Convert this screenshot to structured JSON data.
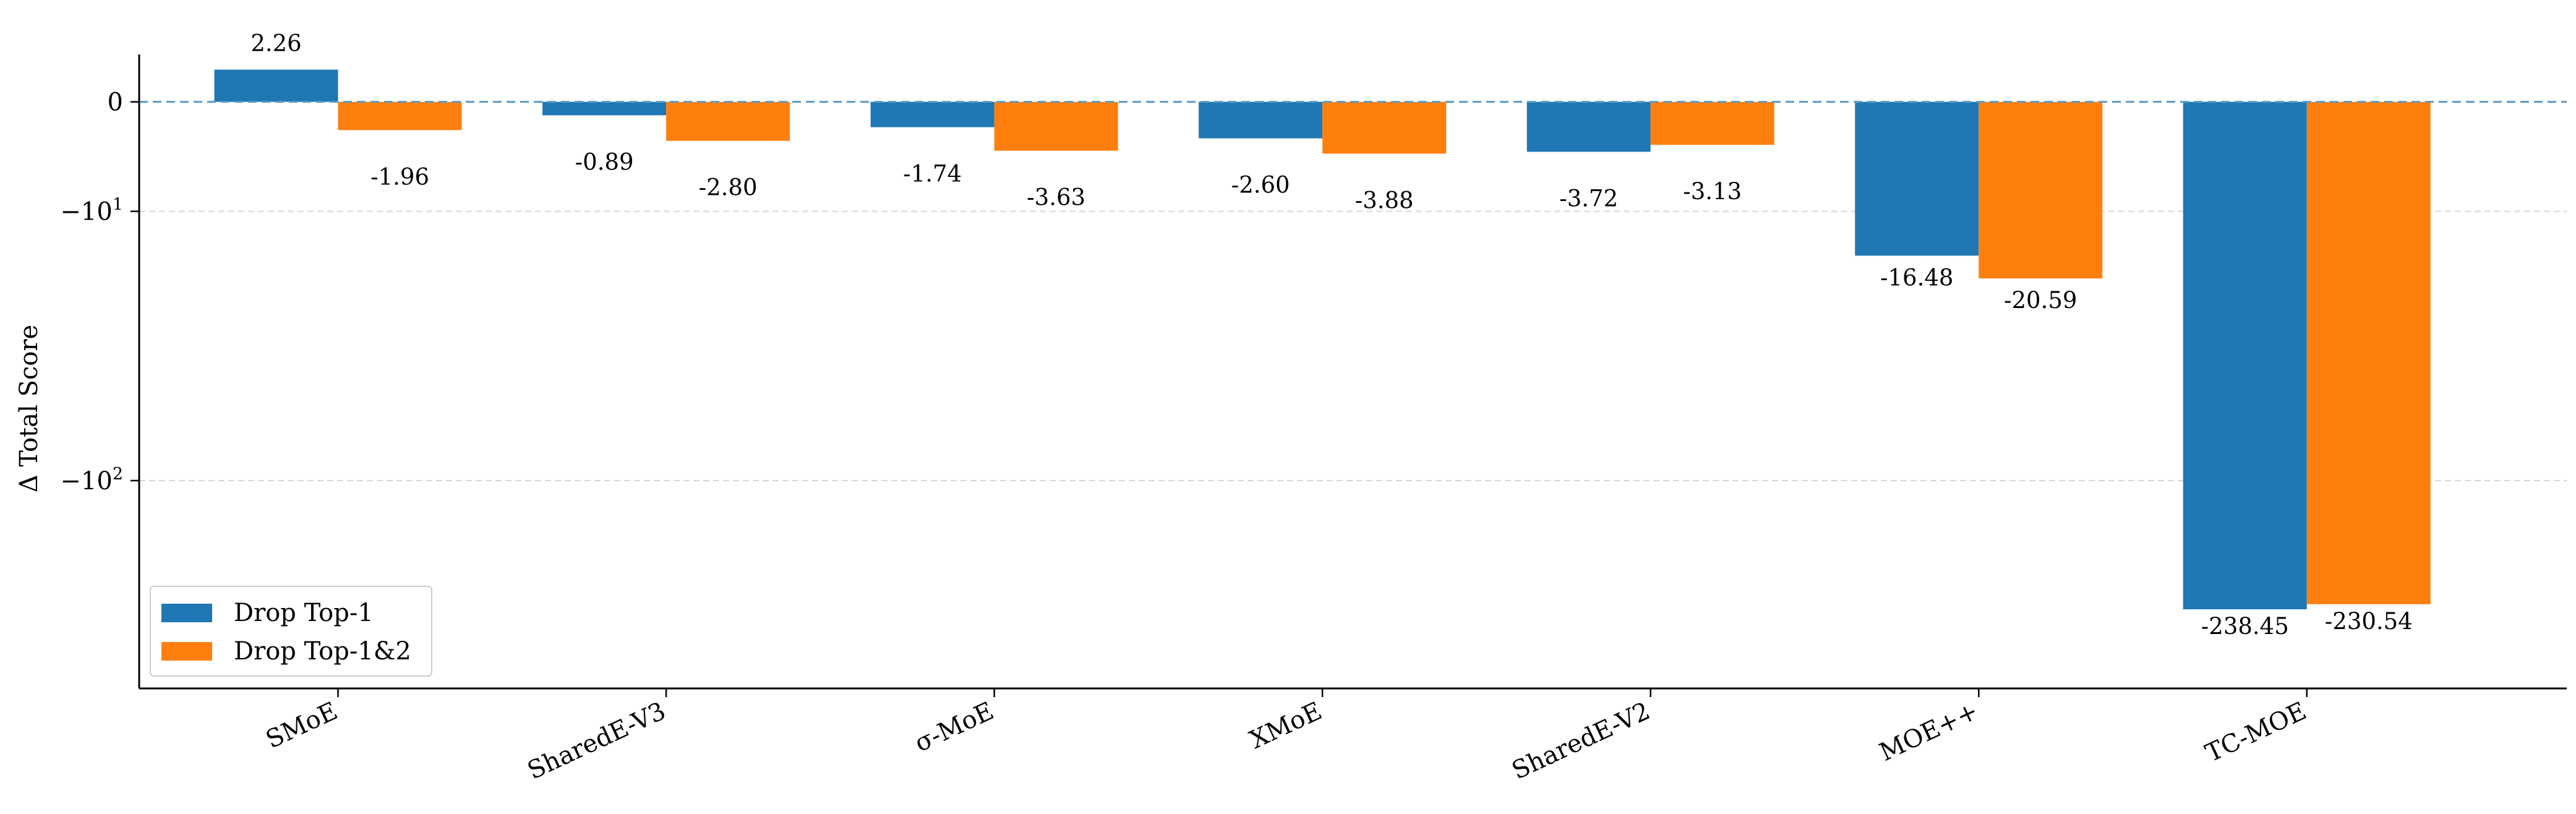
{
  "chart_data": {
    "type": "bar",
    "categories": [
      "SMoE",
      "SharedE-V3",
      "σ-MoE",
      "XMoE",
      "SharedE-V2",
      "MOE++",
      "TC-MOE"
    ],
    "series": [
      {
        "name": "Drop Top-1",
        "color": "#1f77b4",
        "values": [
          2.26,
          -0.89,
          -1.74,
          -2.6,
          -3.72,
          -16.48,
          -238.45
        ],
        "labels": [
          "2.26",
          "-0.89",
          "-1.74",
          "-2.60",
          "-3.72",
          "-16.48",
          "-238.45"
        ]
      },
      {
        "name": "Drop Top-1&2",
        "color": "#ff7f0e",
        "values": [
          -1.96,
          -2.8,
          -3.63,
          -3.88,
          -3.13,
          -20.59,
          -230.54
        ],
        "labels": [
          "-1.96",
          "-2.80",
          "-3.63",
          "-3.88",
          "-3.13",
          "-20.59",
          "-230.54"
        ]
      }
    ],
    "ylabel": "Δ Total Score",
    "yscale": "symlog",
    "linthresh": 10,
    "ylim": [
      -400,
      3.5
    ],
    "yticks": [
      {
        "value": 0,
        "base": "0",
        "exp": ""
      },
      {
        "value": -10,
        "base": "−10",
        "exp": "1"
      },
      {
        "value": -100,
        "base": "−10",
        "exp": "2"
      }
    ],
    "grid": "horizontal-dashed",
    "zero_line": "dashed",
    "legend_position": "lower-left"
  }
}
